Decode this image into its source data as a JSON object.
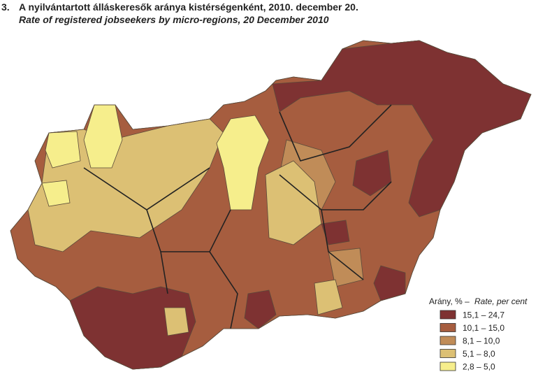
{
  "header": {
    "number": "3.",
    "title": "A nyilvántartott álláskeresők aránya kistérségenként, 2010. december 20.",
    "subtitle": "Rate of registered jobseekers by micro-regions, 20 December 2010"
  },
  "legend": {
    "title": "Arány, % –",
    "title_en": "Rate, per cent",
    "items": [
      {
        "label": "15,1 – 24,7",
        "color": "#7e3232"
      },
      {
        "label": "10,1 – 15,0",
        "color": "#a65d3f"
      },
      {
        "label": "8,1 – 10,0",
        "color": "#c08c58"
      },
      {
        "label": "5,1 – 8,0",
        "color": "#dcc074"
      },
      {
        "label": "2,8 – 5,0",
        "color": "#f6ee8c"
      }
    ]
  }
}
